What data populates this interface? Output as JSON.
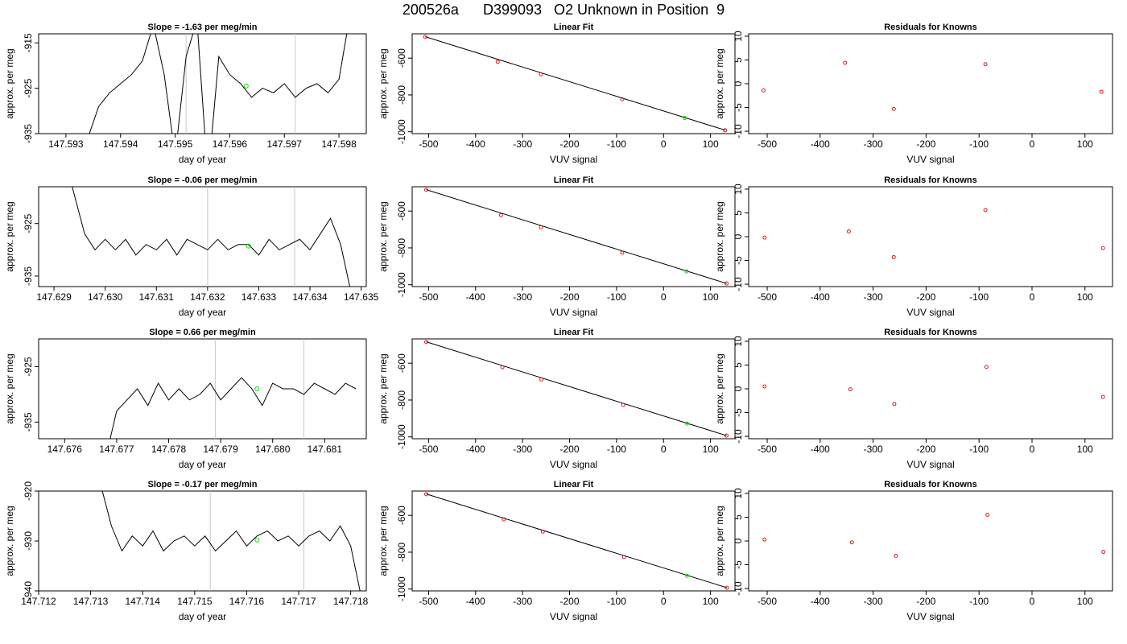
{
  "figure_title": "200526a      D399093   O2 Unknown in Position  9",
  "chart_data": [
    {
      "type": "line",
      "title": "Slope =  -1.63  per meg/min",
      "xlabel": "day of year",
      "ylabel": "approx. per meg",
      "xlim": [
        147.5925,
        147.5985
      ],
      "ylim": [
        -935,
        -913
      ],
      "xticks": [
        "147.593",
        "147.594",
        "147.595",
        "147.596",
        "147.597",
        "147.598"
      ],
      "yticks": [
        "-935",
        "-925",
        "-915"
      ],
      "vlines": [
        147.5952,
        147.5972
      ],
      "line": {
        "x": [
          147.5934,
          147.5936,
          147.5938,
          147.594,
          147.5942,
          147.5944,
          147.5946,
          147.5948,
          147.595,
          147.5952,
          147.5954,
          147.5956,
          147.5958,
          147.596,
          147.5962,
          147.5964,
          147.5966,
          147.5968,
          147.597,
          147.5972,
          147.5974,
          147.5976,
          147.5978,
          147.598,
          147.5982
        ],
        "y": [
          -936,
          -929,
          -926,
          -924,
          -922,
          -919,
          -911,
          -922,
          -940,
          -918,
          -910,
          -945,
          -918,
          -922,
          -924,
          -927,
          -925,
          -926,
          -924,
          -927,
          -925,
          -924,
          -926,
          -923,
          -909
        ]
      },
      "unknown_point": {
        "x": 147.5963,
        "y": -924.5
      }
    },
    {
      "type": "scatter",
      "title": "Linear Fit",
      "xlabel": "VUV signal",
      "ylabel": "approx. per meg",
      "xlim": [
        -535,
        152
      ],
      "ylim": [
        -1010,
        -468
      ],
      "xticks": [
        "-500",
        "-400",
        "-300",
        "-200",
        "-100",
        "0",
        "100"
      ],
      "yticks": [
        "-1000",
        "-800",
        "-600"
      ],
      "knowns": {
        "x": [
          -507,
          -353,
          -261,
          -88,
          131
        ],
        "y": [
          -485,
          -620,
          -688,
          -824,
          -992
        ]
      },
      "fit_line": {
        "x": [
          -507,
          131
        ],
        "y": [
          -484,
          -991
        ]
      },
      "unknown_point": {
        "x": 45,
        "y": -925
      }
    },
    {
      "type": "scatter",
      "title": "Residuals for Knowns",
      "xlabel": "VUV signal",
      "ylabel": "approx. per meg",
      "xlim": [
        -535,
        152
      ],
      "ylim": [
        -10.5,
        10.5
      ],
      "xticks": [
        "-500",
        "-400",
        "-300",
        "-200",
        "-100",
        "0",
        "100"
      ],
      "yticks": [
        "-10",
        "-5",
        "0",
        "5",
        "10"
      ],
      "points": {
        "x": [
          -507,
          -353,
          -261,
          -88,
          131
        ],
        "y": [
          -1.4,
          4.4,
          -5.3,
          4.1,
          -1.7
        ]
      }
    },
    {
      "type": "line",
      "title": "Slope =  -0.06  per meg/min",
      "xlabel": "day of year",
      "ylabel": "approx. per meg",
      "xlim": [
        147.6287,
        147.6351
      ],
      "ylim": [
        -937,
        -918
      ],
      "xticks": [
        "147.629",
        "147.630",
        "147.631",
        "147.632",
        "147.633",
        "147.634",
        "147.635"
      ],
      "yticks": [
        "-935",
        "-925"
      ],
      "vlines": [
        147.632,
        147.6337
      ],
      "line": {
        "x": [
          147.6293,
          147.6296,
          147.6298,
          147.63,
          147.6302,
          147.6304,
          147.6306,
          147.6308,
          147.631,
          147.6312,
          147.6314,
          147.6316,
          147.6318,
          147.632,
          147.6322,
          147.6324,
          147.6326,
          147.6328,
          147.633,
          147.6332,
          147.6334,
          147.6336,
          147.6338,
          147.634,
          147.6342,
          147.6344,
          147.6346,
          147.6348
        ],
        "y": [
          -916,
          -927,
          -930,
          -928,
          -930,
          -928,
          -931,
          -929,
          -930,
          -928,
          -931,
          -928,
          -929,
          -930,
          -928,
          -930,
          -929,
          -929,
          -931,
          -928,
          -930,
          -929,
          -928,
          -930,
          -927,
          -924,
          -929,
          -938
        ]
      },
      "unknown_point": {
        "x": 147.6328,
        "y": -929.3
      }
    },
    {
      "type": "scatter",
      "title": "Linear Fit",
      "xlabel": "VUV signal",
      "ylabel": "approx. per meg",
      "xlim": [
        -535,
        152
      ],
      "ylim": [
        -1010,
        -468
      ],
      "xticks": [
        "-500",
        "-400",
        "-300",
        "-200",
        "-100",
        "0",
        "100"
      ],
      "yticks": [
        "-1000",
        "-800",
        "-600"
      ],
      "knowns": {
        "x": [
          -505,
          -346,
          -261,
          -88,
          134
        ],
        "y": [
          -485,
          -622,
          -688,
          -826,
          -993
        ]
      },
      "fit_line": {
        "x": [
          -505,
          134
        ],
        "y": [
          -484,
          -993
        ]
      },
      "unknown_point": {
        "x": 49,
        "y": -928
      }
    },
    {
      "type": "scatter",
      "title": "Residuals for Knowns",
      "xlabel": "VUV signal",
      "ylabel": "approx. per meg",
      "xlim": [
        -535,
        152
      ],
      "ylim": [
        -10.5,
        10.5
      ],
      "xticks": [
        "-500",
        "-400",
        "-300",
        "-200",
        "-100",
        "0",
        "100"
      ],
      "yticks": [
        "-10",
        "-5",
        "0",
        "5",
        "10"
      ],
      "points": {
        "x": [
          -505,
          -346,
          -261,
          -88,
          134
        ],
        "y": [
          -0.2,
          1.1,
          -4.3,
          5.6,
          -2.4
        ]
      }
    },
    {
      "type": "line",
      "title": "Slope =  0.66  per meg/min",
      "xlabel": "day of year",
      "ylabel": "approx. per meg",
      "xlim": [
        147.6755,
        147.6818
      ],
      "ylim": [
        -938,
        -920
      ],
      "xticks": [
        "147.676",
        "147.677",
        "147.678",
        "147.679",
        "147.680",
        "147.681"
      ],
      "yticks": [
        "-935",
        "-925"
      ],
      "vlines": [
        147.6789,
        147.6806
      ],
      "line": {
        "x": [
          147.6768,
          147.677,
          147.6772,
          147.6774,
          147.6776,
          147.6778,
          147.678,
          147.6782,
          147.6784,
          147.6786,
          147.6788,
          147.679,
          147.6792,
          147.6794,
          147.6796,
          147.6798,
          147.68,
          147.6802,
          147.6804,
          147.6806,
          147.6808,
          147.681,
          147.6812,
          147.6814,
          147.6816
        ],
        "y": [
          -941,
          -933,
          -931,
          -929,
          -932,
          -928,
          -931,
          -929,
          -931,
          -930,
          -928,
          -931,
          -929,
          -927,
          -929,
          -932,
          -928,
          -929,
          -929,
          -930,
          -928,
          -929,
          -930,
          -928,
          -929
        ]
      },
      "unknown_point": {
        "x": 147.6797,
        "y": -929
      }
    },
    {
      "type": "scatter",
      "title": "Linear Fit",
      "xlabel": "VUV signal",
      "ylabel": "approx. per meg",
      "xlim": [
        -535,
        152
      ],
      "ylim": [
        -1010,
        -468
      ],
      "xticks": [
        "-500",
        "-400",
        "-300",
        "-200",
        "-100",
        "0",
        "100"
      ],
      "yticks": [
        "-1000",
        "-800",
        "-600"
      ],
      "knowns": {
        "x": [
          -505,
          -343,
          -260,
          -86,
          134
        ],
        "y": [
          -485,
          -622,
          -688,
          -826,
          -993
        ]
      },
      "fit_line": {
        "x": [
          -505,
          134
        ],
        "y": [
          -484,
          -993
        ]
      },
      "unknown_point": {
        "x": 50,
        "y": -928
      }
    },
    {
      "type": "scatter",
      "title": "Residuals for Knowns",
      "xlabel": "VUV signal",
      "ylabel": "approx. per meg",
      "xlim": [
        -535,
        152
      ],
      "ylim": [
        -10.5,
        10.5
      ],
      "xticks": [
        "-500",
        "-400",
        "-300",
        "-200",
        "-100",
        "0",
        "100"
      ],
      "yticks": [
        "-10",
        "-5",
        "0",
        "5",
        "10"
      ],
      "points": {
        "x": [
          -505,
          -343,
          -260,
          -86,
          134
        ],
        "y": [
          0.5,
          -0.1,
          -3.2,
          4.6,
          -1.7
        ]
      }
    },
    {
      "type": "line",
      "title": "Slope =  -0.17  per meg/min",
      "xlabel": "day of year",
      "ylabel": "approx. per meg",
      "xlim": [
        147.712,
        147.7183
      ],
      "ylim": [
        -940,
        -920
      ],
      "xticks": [
        "147.712",
        "147.713",
        "147.714",
        "147.715",
        "147.716",
        "147.717",
        "147.718"
      ],
      "yticks": [
        "-940",
        "-930",
        "-920"
      ],
      "vlines": [
        147.7153,
        147.7171
      ],
      "line": {
        "x": [
          147.7132,
          147.7134,
          147.7136,
          147.7138,
          147.714,
          147.7142,
          147.7144,
          147.7146,
          147.7148,
          147.715,
          147.7152,
          147.7154,
          147.7156,
          147.7158,
          147.716,
          147.7162,
          147.7164,
          147.7166,
          147.7168,
          147.717,
          147.7172,
          147.7174,
          147.7176,
          147.7178,
          147.718,
          147.7182
        ],
        "y": [
          -919,
          -927,
          -932,
          -929,
          -931,
          -928,
          -932,
          -930,
          -929,
          -931,
          -929,
          -932,
          -930,
          -928,
          -931,
          -929,
          -928,
          -930,
          -929,
          -931,
          -929,
          -928,
          -930,
          -927,
          -931,
          -941
        ]
      },
      "unknown_point": {
        "x": 147.7162,
        "y": -929.8
      }
    },
    {
      "type": "scatter",
      "title": "Linear Fit",
      "xlabel": "VUV signal",
      "ylabel": "approx. per meg",
      "xlim": [
        -535,
        152
      ],
      "ylim": [
        -1010,
        -468
      ],
      "xticks": [
        "-500",
        "-400",
        "-300",
        "-200",
        "-100",
        "0",
        "100"
      ],
      "yticks": [
        "-1000",
        "-800",
        "-600"
      ],
      "knowns": {
        "x": [
          -505,
          -340,
          -257,
          -84,
          135
        ],
        "y": [
          -485,
          -622,
          -688,
          -826,
          -993
        ]
      },
      "fit_line": {
        "x": [
          -505,
          135
        ],
        "y": [
          -484,
          -993
        ]
      },
      "unknown_point": {
        "x": 50,
        "y": -928
      }
    },
    {
      "type": "scatter",
      "title": "Residuals for Knowns",
      "xlabel": "VUV signal",
      "ylabel": "approx. per meg",
      "xlim": [
        -535,
        152
      ],
      "ylim": [
        -10.5,
        10.5
      ],
      "xticks": [
        "-500",
        "-400",
        "-300",
        "-200",
        "-100",
        "0",
        "100"
      ],
      "yticks": [
        "-10",
        "-5",
        "0",
        "5",
        "10"
      ],
      "points": {
        "x": [
          -505,
          -340,
          -257,
          -84,
          135
        ],
        "y": [
          0.3,
          -0.3,
          -3.1,
          5.5,
          -2.3
        ]
      }
    }
  ]
}
